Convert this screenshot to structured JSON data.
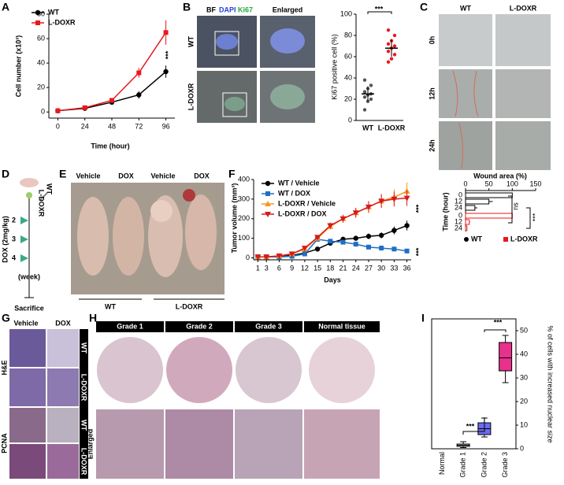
{
  "labels": {
    "panels": [
      "A",
      "B",
      "C",
      "D",
      "E",
      "F",
      "G",
      "H",
      "I"
    ],
    "B": [
      "BF",
      "DAPI",
      "Ki67",
      "Enlarged",
      "WT",
      "L-DOXR"
    ],
    "C": [
      "WT",
      "L-DOXR",
      "0h",
      "12h",
      "24h"
    ],
    "D": [
      "2",
      "3",
      "4",
      "DOX (2mg/kg)",
      "(week)",
      "Sacrifice",
      "WT",
      "L-DOXR"
    ],
    "E": [
      "Vehicle",
      "DOX",
      "Vehicle",
      "DOX",
      "WT",
      "L-DOXR"
    ],
    "G": [
      "Vehicle",
      "DOX",
      "H&E",
      "PCNA",
      "WT",
      "L-DOXR",
      "WT",
      "L-DOXR"
    ],
    "H": [
      "Grade 1",
      "Grade 2",
      "Grade 3",
      "Normal tissue",
      "Enlarged"
    ]
  },
  "chart_data": [
    {
      "type": "line",
      "x_label": "Time (hour)",
      "y_label": "Cell number (x10³)",
      "x": [
        0,
        24,
        48,
        72,
        96
      ],
      "xlim": [
        -8,
        104
      ],
      "xticks": [
        0,
        24,
        48,
        72,
        96
      ],
      "ylim": [
        -5,
        80
      ],
      "yticks": [
        0,
        20,
        40,
        60,
        80
      ],
      "series": [
        {
          "name": "WT",
          "color": "#000000",
          "marker": "circle",
          "values": [
            1,
            3,
            8,
            14,
            33
          ],
          "errors": [
            0.5,
            0.5,
            1,
            3,
            5
          ]
        },
        {
          "name": "L-DOXR",
          "color": "#e8191e",
          "marker": "square",
          "values": [
            1,
            3.5,
            9.5,
            32,
            65
          ],
          "errors": [
            0.5,
            0.5,
            1.5,
            4,
            10
          ]
        }
      ],
      "annotations": [
        "***"
      ]
    },
    {
      "type": "strip",
      "y_label": "Ki67 positive cell (%)",
      "categories": [
        "WT",
        "L-DOXR"
      ],
      "colors": [
        "#555555",
        "#e8191e"
      ],
      "values": [
        25,
        68
      ],
      "errors": [
        7,
        8
      ],
      "points": [
        [
          10,
          18,
          20,
          22,
          24,
          25,
          27,
          30,
          33,
          38
        ],
        [
          55,
          58,
          62,
          65,
          68,
          70,
          72,
          75,
          80,
          85
        ]
      ],
      "ylim": [
        0,
        100
      ],
      "yticks": [
        0,
        20,
        40,
        60,
        80,
        100
      ],
      "annotations": [
        "***"
      ]
    },
    {
      "type": "hbar",
      "x_label": "Wound area (%)",
      "y_label": "Time (hour)",
      "categories": [
        "0",
        "12",
        "24"
      ],
      "xlim": [
        0,
        150
      ],
      "xticks": [
        0,
        50,
        100,
        150
      ],
      "series": [
        {
          "name": "WT",
          "color": "#000000",
          "values": [
            100,
            50,
            20
          ],
          "errors": [
            0,
            8,
            5
          ]
        },
        {
          "name": "L-DOXR",
          "color": "#e8191e",
          "values": [
            100,
            8,
            3
          ],
          "errors": [
            0,
            2,
            1
          ]
        }
      ],
      "annotations": [
        "ns",
        "***"
      ]
    },
    {
      "type": "line",
      "x_label": "Days",
      "y_label": "Tumor volume (mm³)",
      "x": [
        1,
        3,
        6,
        9,
        12,
        15,
        18,
        21,
        24,
        27,
        30,
        33,
        36
      ],
      "xlim": [
        0,
        37
      ],
      "xticks": [
        1,
        3,
        6,
        9,
        12,
        15,
        18,
        21,
        24,
        27,
        30,
        33,
        36
      ],
      "ylim": [
        -10,
        400
      ],
      "yticks": [
        0,
        100,
        200,
        300,
        400
      ],
      "series": [
        {
          "name": "WT / Vehicle",
          "color": "#000000",
          "marker": "circle",
          "values": [
            5,
            5,
            8,
            12,
            25,
            45,
            75,
            95,
            100,
            110,
            115,
            140,
            165
          ],
          "errors": [
            2,
            2,
            3,
            4,
            6,
            8,
            10,
            12,
            12,
            14,
            15,
            20,
            25
          ]
        },
        {
          "name": "WT / DOX",
          "color": "#1f6fc4",
          "marker": "square",
          "values": [
            5,
            5,
            5,
            8,
            20,
            95,
            85,
            80,
            70,
            55,
            50,
            45,
            35
          ],
          "errors": [
            2,
            2,
            2,
            3,
            5,
            8,
            8,
            8,
            8,
            7,
            6,
            6,
            5
          ]
        },
        {
          "name": "L-DOXR / Vehicle",
          "color": "#f39a1e",
          "marker": "triangle-up",
          "values": [
            5,
            5,
            10,
            20,
            45,
            100,
            160,
            200,
            230,
            260,
            290,
            310,
            340
          ],
          "errors": [
            2,
            2,
            3,
            5,
            8,
            12,
            15,
            20,
            25,
            30,
            35,
            40,
            45
          ]
        },
        {
          "name": "L-DOXR / DOX",
          "color": "#d7191c",
          "marker": "triangle-down",
          "values": [
            5,
            5,
            10,
            20,
            50,
            105,
            165,
            200,
            230,
            260,
            290,
            300,
            305
          ],
          "errors": [
            2,
            2,
            3,
            5,
            8,
            12,
            15,
            20,
            25,
            30,
            35,
            38,
            40
          ]
        }
      ],
      "annotations": [
        "***",
        "***"
      ]
    },
    {
      "type": "box",
      "y_label": "% of cells with increased nuclear size",
      "categories": [
        "Normal",
        "Grade 1",
        "Grade 2",
        "Grade 3"
      ],
      "colors": [
        null,
        "#c8c8c8",
        "#6b6bf0",
        "#e8308c"
      ],
      "boxes": [
        null,
        {
          "min": 0.5,
          "q1": 1,
          "median": 1.5,
          "q3": 2,
          "max": 3
        },
        {
          "min": 5,
          "q1": 6,
          "median": 8.5,
          "q3": 11,
          "max": 13
        },
        {
          "min": 28,
          "q1": 33,
          "median": 38.5,
          "q3": 45,
          "max": 48
        }
      ],
      "ylim": [
        0,
        55
      ],
      "yticks": [
        0,
        10,
        20,
        30,
        40,
        50
      ],
      "annotations": [
        "***",
        "***"
      ]
    }
  ]
}
